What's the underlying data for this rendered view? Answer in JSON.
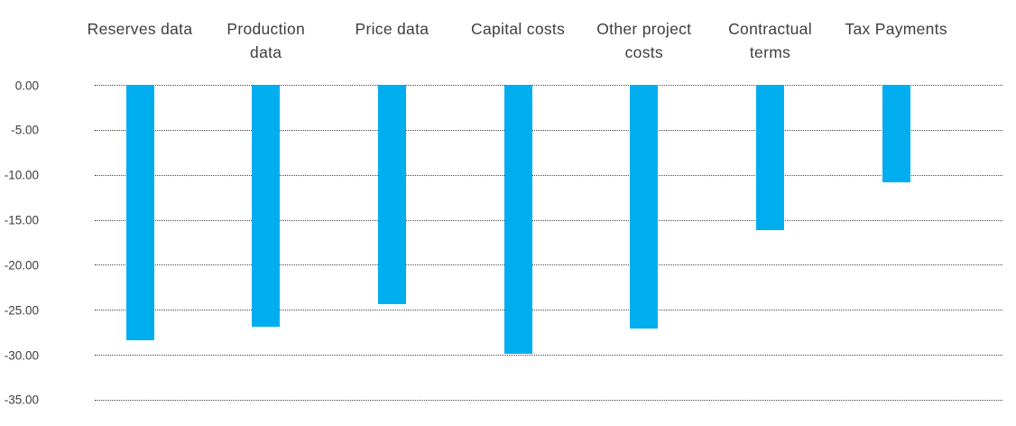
{
  "chart_data": {
    "type": "bar",
    "title": "",
    "orientation": "vertical",
    "categories": [
      "Reserves data",
      "Production\ndata",
      "Price data",
      "Capital costs",
      "Other project\ncosts",
      "Contractual\nterms",
      "Tax Payments"
    ],
    "values": [
      -28.4,
      -26.9,
      -24.4,
      -29.9,
      -27.1,
      -16.1,
      -10.8
    ],
    "y_ticks": [
      "0.00",
      "-5.00",
      "-10.00",
      "-15.00",
      "-20.00",
      "-25.00",
      "-30.00",
      "-35.00"
    ],
    "ylim": [
      -35,
      0
    ],
    "xlabel": "",
    "ylabel": "",
    "legend_position": "none",
    "grid": "horizontal-dotted",
    "bar_color": "#00AEEF",
    "text_color": "#3e3e3e",
    "gridline_color": "#474747",
    "background_color": "#ffffff"
  }
}
